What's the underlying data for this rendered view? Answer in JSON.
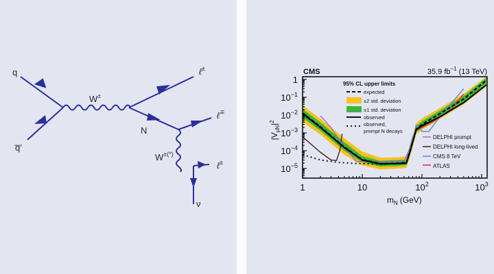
{
  "diagram": {
    "type": "feynman",
    "labels": {
      "q": "q",
      "qbar": "q̅′",
      "w": "W",
      "w_sup": "±",
      "n": "N",
      "lep1": "ℓ",
      "lep1_sup": "±",
      "lep2": "ℓ",
      "lep2_sup": "∓",
      "wstar": "W",
      "wstar_sup": "±(*)",
      "lep3": "ℓ",
      "lep3_sup": "±",
      "nu": "ν"
    },
    "line_color": "#2b2f9a"
  },
  "chart_data": {
    "type": "line",
    "experiment_label": "CMS",
    "lumi_label": "35.9 fb",
    "lumi_sup": "−1",
    "energy_label": "(13 TeV)",
    "xlabel": "m",
    "xlabel_sub": "N",
    "xlabel_unit": "(GeV)",
    "ylabel": "|V",
    "ylabel_sub": "μN",
    "ylabel_tail": "|",
    "ylabel_sup": "2",
    "xscale": "log",
    "yscale": "log",
    "xlim": [
      1,
      1200
    ],
    "ylim": [
      3e-06,
      2
    ],
    "x_ticks": [
      {
        "v": 1,
        "label": "1"
      },
      {
        "v": 10,
        "label": "10"
      },
      {
        "v": 100,
        "label": "10",
        "sup": "2"
      },
      {
        "v": 1000,
        "label": "10",
        "sup": "3"
      }
    ],
    "y_ticks": [
      {
        "v": 1,
        "label": "1"
      },
      {
        "v": 0.1,
        "label": "10",
        "sup": "−1"
      },
      {
        "v": 0.01,
        "label": "10",
        "sup": "−2"
      },
      {
        "v": 0.001,
        "label": "10",
        "sup": "−3"
      },
      {
        "v": 0.0001,
        "label": "10",
        "sup": "−4"
      },
      {
        "v": 1e-05,
        "label": "10",
        "sup": "−5"
      }
    ],
    "legend_title": "95% CL upper limits",
    "legend": [
      {
        "label": "expected",
        "style": "dashed",
        "color": "#000000"
      },
      {
        "label": "±2 std. deviation",
        "style": "band",
        "color": "#f7c21b"
      },
      {
        "label": "±1 std. deviation",
        "style": "band",
        "color": "#3cb43c"
      },
      {
        "label": "observed",
        "style": "solid",
        "color": "#000000"
      },
      {
        "label": "observed,",
        "label2": "prompt N decays",
        "style": "dotted",
        "color": "#000000"
      }
    ],
    "legend2": [
      {
        "label": "DELPHI prompt",
        "color": "#9a6bc0"
      },
      {
        "label": "DELPHI long-lived",
        "color": "#4a1f22"
      },
      {
        "label": "CMS 8 TeV",
        "color": "#5b86c9"
      },
      {
        "label": "ATLAS",
        "color": "#e8262a"
      }
    ],
    "series": [
      {
        "name": "observed",
        "x": [
          1,
          2,
          5,
          10,
          20,
          40,
          55,
          65,
          80,
          100,
          200,
          500,
          1200
        ],
        "values": [
          0.012,
          0.002,
          0.00015,
          3e-05,
          1.8e-05,
          1.9e-05,
          2e-05,
          0.00012,
          0.0015,
          0.0025,
          0.008,
          0.05,
          0.5
        ]
      },
      {
        "name": "expected",
        "x": [
          1,
          2,
          5,
          10,
          20,
          40,
          55,
          65,
          80,
          100,
          200,
          500,
          1200
        ],
        "values": [
          0.013,
          0.0022,
          0.00016,
          3.2e-05,
          1.9e-05,
          2e-05,
          2.2e-05,
          0.00013,
          0.0016,
          0.003,
          0.012,
          0.08,
          0.9
        ]
      },
      {
        "name": "observed, prompt N decays",
        "x": [
          1,
          2,
          4,
          8,
          15,
          25
        ],
        "values": [
          6e-05,
          3e-05,
          2.2e-05,
          1.9e-05,
          1.8e-05,
          1.8e-05
        ]
      },
      {
        "name": "DELPHI prompt",
        "x": [
          2,
          3,
          5,
          8,
          15,
          30,
          50,
          70,
          80
        ],
        "values": [
          0.009,
          0.002,
          0.00015,
          2.5e-05,
          2.3e-05,
          2.4e-05,
          2.5e-05,
          0.0003,
          0.003
        ]
      },
      {
        "name": "DELPHI long-lived",
        "x": [
          1,
          2,
          3,
          3.7,
          4.2,
          4.6
        ],
        "values": [
          0.0006,
          8e-05,
          3e-05,
          2.8e-05,
          0.0001,
          0.0009
        ]
      },
      {
        "name": "CMS 8 TeV",
        "x": [
          55,
          70,
          85,
          100,
          130,
          200,
          500
        ],
        "values": [
          3e-05,
          0.0006,
          0.0025,
          0.0012,
          0.0012,
          0.008,
          0.3
        ]
      },
      {
        "name": "ATLAS",
        "x": [
          80,
          100,
          150,
          300,
          500
        ],
        "values": [
          0.0015,
          0.002,
          0.004,
          0.02,
          0.15
        ]
      }
    ],
    "bands": [
      {
        "name": "±2 std. deviation",
        "color": "#f7c21b",
        "x": [
          1,
          2,
          5,
          10,
          20,
          40,
          55,
          65,
          80,
          100,
          200,
          500,
          1200
        ],
        "lower": [
          0.004,
          0.0008,
          6e-05,
          1.5e-05,
          9e-06,
          1e-05,
          1.1e-05,
          6e-05,
          0.0008,
          0.0015,
          0.006,
          0.04,
          0.4
        ],
        "upper": [
          0.035,
          0.006,
          0.0005,
          9e-05,
          4e-05,
          4.2e-05,
          4.8e-05,
          0.0003,
          0.0035,
          0.0065,
          0.025,
          0.16,
          1.6
        ]
      },
      {
        "name": "±1 std. deviation",
        "color": "#3cb43c",
        "x": [
          1,
          2,
          5,
          10,
          20,
          40,
          55,
          65,
          80,
          100,
          200,
          500,
          1200
        ],
        "lower": [
          0.007,
          0.0013,
          0.0001,
          2.2e-05,
          1.3e-05,
          1.4e-05,
          1.6e-05,
          9e-05,
          0.0011,
          0.002,
          0.008,
          0.055,
          0.6
        ],
        "upper": [
          0.022,
          0.0038,
          0.0003,
          5e-05,
          2.7e-05,
          3e-05,
          3.2e-05,
          0.0002,
          0.0024,
          0.0045,
          0.018,
          0.12,
          1.25
        ]
      }
    ]
  }
}
